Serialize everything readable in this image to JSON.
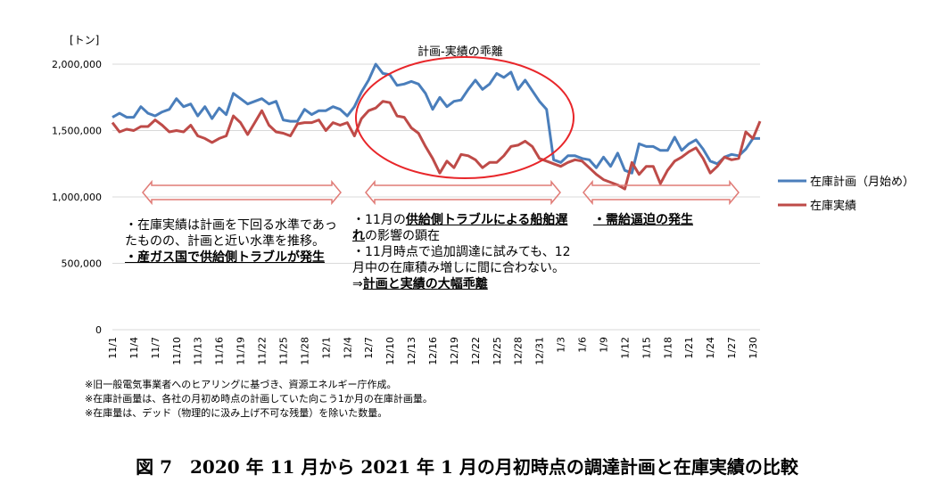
{
  "chart_data": {
    "type": "line",
    "unit_label": "[トン]",
    "ylim": [
      0,
      2000000
    ],
    "yticks": [
      "0",
      "500,000",
      "1,000,000",
      "1,500,000",
      "2,000,000"
    ],
    "ytick_values": [
      0,
      500000,
      1000000,
      1500000,
      2000000
    ],
    "x": [
      "11/1",
      "11/2",
      "11/3",
      "11/4",
      "11/5",
      "11/6",
      "11/7",
      "11/8",
      "11/9",
      "11/10",
      "11/11",
      "11/12",
      "11/13",
      "11/14",
      "11/15",
      "11/16",
      "11/17",
      "11/18",
      "11/19",
      "11/20",
      "11/21",
      "11/22",
      "11/23",
      "11/24",
      "11/25",
      "11/26",
      "11/27",
      "11/28",
      "11/29",
      "11/30",
      "12/1",
      "12/2",
      "12/3",
      "12/4",
      "12/5",
      "12/6",
      "12/7",
      "12/8",
      "12/9",
      "12/10",
      "12/11",
      "12/12",
      "12/13",
      "12/14",
      "12/15",
      "12/16",
      "12/17",
      "12/18",
      "12/19",
      "12/20",
      "12/21",
      "12/22",
      "12/23",
      "12/24",
      "12/25",
      "12/26",
      "12/27",
      "12/28",
      "12/29",
      "12/30",
      "12/31",
      "1/1",
      "1/2",
      "1/3",
      "1/4",
      "1/5",
      "1/6",
      "1/7",
      "1/8",
      "1/9",
      "1/10",
      "1/11",
      "1/12",
      "1/13",
      "1/14",
      "1/15",
      "1/16",
      "1/17",
      "1/18",
      "1/19",
      "1/20",
      "1/21",
      "1/22",
      "1/23",
      "1/24",
      "1/25",
      "1/26",
      "1/27",
      "1/28",
      "1/29",
      "1/30",
      "1/31"
    ],
    "xtick_labels": [
      "11/1",
      "11/4",
      "11/7",
      "11/10",
      "11/13",
      "11/16",
      "11/19",
      "11/22",
      "11/25",
      "11/28",
      "12/1",
      "12/4",
      "12/7",
      "12/10",
      "12/13",
      "12/16",
      "12/19",
      "12/22",
      "12/25",
      "12/28",
      "12/31",
      "1/3",
      "1/6",
      "1/9",
      "1/12",
      "1/15",
      "1/18",
      "1/21",
      "1/24",
      "1/27",
      "1/30"
    ],
    "series": [
      {
        "name": "在庫計画（月始め）",
        "color": "#4a7ebb",
        "values": [
          1600000,
          1630000,
          1600000,
          1600000,
          1680000,
          1630000,
          1610000,
          1640000,
          1660000,
          1740000,
          1680000,
          1700000,
          1610000,
          1680000,
          1590000,
          1670000,
          1620000,
          1780000,
          1740000,
          1700000,
          1720000,
          1740000,
          1700000,
          1720000,
          1580000,
          1570000,
          1570000,
          1660000,
          1620000,
          1650000,
          1650000,
          1680000,
          1660000,
          1610000,
          1680000,
          1790000,
          1880000,
          2000000,
          1930000,
          1920000,
          1840000,
          1850000,
          1870000,
          1850000,
          1780000,
          1660000,
          1750000,
          1680000,
          1720000,
          1730000,
          1810000,
          1880000,
          1810000,
          1850000,
          1930000,
          1900000,
          1940000,
          1810000,
          1880000,
          1800000,
          1720000,
          1660000,
          1280000,
          1260000,
          1310000,
          1310000,
          1290000,
          1280000,
          1220000,
          1300000,
          1230000,
          1330000,
          1200000,
          1180000,
          1400000,
          1380000,
          1380000,
          1350000,
          1350000,
          1450000,
          1350000,
          1400000,
          1430000,
          1360000,
          1270000,
          1250000,
          1300000,
          1320000,
          1310000,
          1360000,
          1440000,
          1440000
        ]
      },
      {
        "name": "在庫実績",
        "color": "#be4b48",
        "values": [
          1560000,
          1490000,
          1510000,
          1500000,
          1530000,
          1530000,
          1580000,
          1540000,
          1490000,
          1500000,
          1490000,
          1540000,
          1460000,
          1440000,
          1410000,
          1440000,
          1460000,
          1610000,
          1560000,
          1470000,
          1560000,
          1650000,
          1540000,
          1490000,
          1480000,
          1460000,
          1550000,
          1560000,
          1560000,
          1580000,
          1500000,
          1560000,
          1540000,
          1560000,
          1460000,
          1590000,
          1650000,
          1670000,
          1720000,
          1710000,
          1610000,
          1600000,
          1520000,
          1480000,
          1380000,
          1290000,
          1180000,
          1270000,
          1220000,
          1320000,
          1310000,
          1280000,
          1220000,
          1260000,
          1260000,
          1310000,
          1380000,
          1390000,
          1420000,
          1380000,
          1290000,
          1270000,
          1250000,
          1230000,
          1260000,
          1280000,
          1270000,
          1220000,
          1170000,
          1130000,
          1110000,
          1090000,
          1060000,
          1260000,
          1170000,
          1230000,
          1230000,
          1100000,
          1200000,
          1270000,
          1300000,
          1340000,
          1370000,
          1290000,
          1180000,
          1230000,
          1300000,
          1280000,
          1290000,
          1490000,
          1440000,
          1570000
        ]
      }
    ],
    "annotations": {
      "ellipse_label": "計画-実績の乖離"
    },
    "legend_position": "right",
    "grid": true
  },
  "notes": {
    "n1_l1": "・在庫実績は計画を下回る水準であっ",
    "n1_l2": "たものの、計画と近い水準を推移。",
    "n1_l3": "・産ガス国で供給側トラブルが発生",
    "n2_l1_a": "・11月の",
    "n2_l1_b": "供給側トラブルによる船舶遅",
    "n2_l2_a": "れ",
    "n2_l2_b": "の影響の顕在",
    "n2_l3": "・11月時点で追加調達に試みても、12",
    "n2_l4": "月中の在庫積み増しに間に合わない。",
    "n2_l5_a": "⇒",
    "n2_l5_b": "計画と実績の大幅乖離",
    "n3": "・需給逼迫の発生"
  },
  "footnotes": [
    "※旧一般電気事業者へのヒアリングに基づき、資源エネルギー庁作成。",
    "※在庫計画量は、各社の月初め時点の計画していた向こう1か月の在庫計画量。",
    "※在庫量は、デッド（物理的に汲み上げ不可な残量）を除いた数量。"
  ],
  "caption": "図 7　2020 年 11 月から 2021 年 1 月の月初時点の調達計画と在庫実績の比較"
}
